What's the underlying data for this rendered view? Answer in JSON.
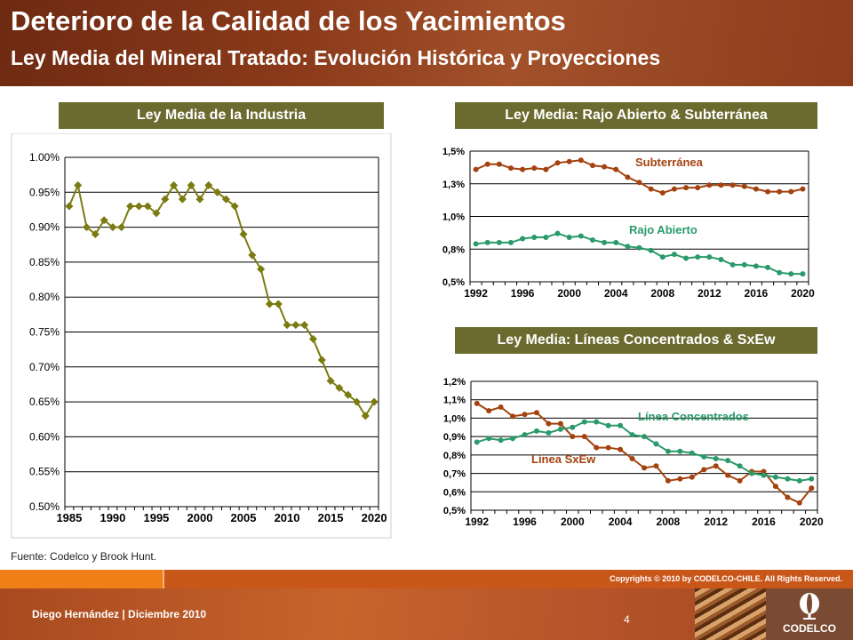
{
  "header": {
    "title": "Deterioro de la Calidad de los Yacimientos",
    "subtitle": "Ley Media del Mineral Tratado: Evolución Histórica y Proyecciones"
  },
  "footer": {
    "source": "Fuente: Codelco y Brook Hunt.",
    "copyright": "Copyrights © 2010 by CODELCO-CHILE.  All Rights Reserved.",
    "presenter": "Diego Hernández | Diciembre 2010",
    "page": "4",
    "logo": "CODELCO"
  },
  "colors": {
    "olive": "#7b7b12",
    "brown": "#a3420f",
    "green": "#2a9a6a",
    "box": "#6b6b30"
  },
  "chart_data": [
    {
      "type": "line",
      "title": "Ley Media de la Industria",
      "x": [
        1985,
        1986,
        1987,
        1988,
        1989,
        1990,
        1991,
        1992,
        1993,
        1994,
        1995,
        1996,
        1997,
        1998,
        1999,
        2000,
        2001,
        2002,
        2003,
        2004,
        2005,
        2006,
        2007,
        2008,
        2009,
        2010,
        2011,
        2012,
        2013,
        2014,
        2015,
        2016,
        2017,
        2018,
        2019,
        2020
      ],
      "series": [
        {
          "name": "Industria",
          "color": "#7b7b12",
          "values": [
            0.93,
            0.96,
            0.9,
            0.89,
            0.91,
            0.9,
            0.9,
            0.93,
            0.93,
            0.93,
            0.92,
            0.94,
            0.96,
            0.94,
            0.96,
            0.94,
            0.96,
            0.95,
            0.94,
            0.93,
            0.89,
            0.86,
            0.84,
            0.79,
            0.79,
            0.76,
            0.76,
            0.76,
            0.74,
            0.71,
            0.68,
            0.67,
            0.66,
            0.65,
            0.63,
            0.65
          ]
        }
      ],
      "ylim": [
        0.5,
        1.0
      ],
      "yticks": [
        0.5,
        0.55,
        0.6,
        0.65,
        0.7,
        0.75,
        0.8,
        0.85,
        0.9,
        0.95,
        1.0
      ],
      "ytick_labels": [
        "0.50%",
        "0.55%",
        "0.60%",
        "0.65%",
        "0.70%",
        "0.75%",
        "0.80%",
        "0.85%",
        "0.90%",
        "0.95%",
        "1.00%"
      ],
      "xtick_labels": [
        "1985",
        "1990",
        "1995",
        "2000",
        "2005",
        "2010",
        "2015",
        "2020"
      ],
      "grid": true
    },
    {
      "type": "line",
      "title": "Ley Media: Rajo Abierto & Subterránea",
      "x": [
        1992,
        1993,
        1994,
        1995,
        1996,
        1997,
        1998,
        1999,
        2000,
        2001,
        2002,
        2003,
        2004,
        2005,
        2006,
        2007,
        2008,
        2009,
        2010,
        2011,
        2012,
        2013,
        2014,
        2015,
        2016,
        2017,
        2018,
        2019,
        2020
      ],
      "series": [
        {
          "name": "Subterránea",
          "color": "#a3420f",
          "values": [
            1.36,
            1.4,
            1.4,
            1.37,
            1.36,
            1.37,
            1.36,
            1.41,
            1.42,
            1.43,
            1.39,
            1.38,
            1.36,
            1.3,
            1.26,
            1.21,
            1.18,
            1.21,
            1.22,
            1.22,
            1.24,
            1.24,
            1.24,
            1.23,
            1.21,
            1.19,
            1.19,
            1.19,
            1.21
          ]
        },
        {
          "name": "Rajo Abierto",
          "color": "#2a9a6a",
          "values": [
            0.79,
            0.8,
            0.8,
            0.8,
            0.83,
            0.84,
            0.84,
            0.87,
            0.84,
            0.85,
            0.82,
            0.8,
            0.8,
            0.77,
            0.76,
            0.74,
            0.69,
            0.71,
            0.68,
            0.69,
            0.69,
            0.67,
            0.63,
            0.63,
            0.62,
            0.61,
            0.57,
            0.56,
            0.56
          ]
        }
      ],
      "ylim": [
        0.5,
        1.5
      ],
      "yticks": [
        0.5,
        0.75,
        1.0,
        1.25,
        1.5
      ],
      "ytick_labels": [
        "0,5%",
        "0,8%",
        "1,0%",
        "1,3%",
        "1,5%"
      ],
      "xtick_labels": [
        "1992",
        "1996",
        "2000",
        "2004",
        "2008",
        "2012",
        "2016",
        "2020"
      ],
      "grid": true
    },
    {
      "type": "line",
      "title": "Ley Media: Líneas Concentrados & SxEw",
      "x": [
        1992,
        1993,
        1994,
        1995,
        1996,
        1997,
        1998,
        1999,
        2000,
        2001,
        2002,
        2003,
        2004,
        2005,
        2006,
        2007,
        2008,
        2009,
        2010,
        2011,
        2012,
        2013,
        2014,
        2015,
        2016,
        2017,
        2018,
        2019,
        2020
      ],
      "series": [
        {
          "name": "Línea SxEw",
          "color": "#a3420f",
          "values": [
            1.08,
            1.04,
            1.06,
            1.01,
            1.02,
            1.03,
            0.97,
            0.97,
            0.9,
            0.9,
            0.84,
            0.84,
            0.83,
            0.78,
            0.73,
            0.74,
            0.66,
            0.67,
            0.68,
            0.72,
            0.74,
            0.69,
            0.66,
            0.71,
            0.71,
            0.63,
            0.57,
            0.54,
            0.62
          ]
        },
        {
          "name": "Línea Concentrados",
          "color": "#2a9a6a",
          "values": [
            0.87,
            0.89,
            0.88,
            0.89,
            0.91,
            0.93,
            0.92,
            0.94,
            0.95,
            0.98,
            0.98,
            0.96,
            0.96,
            0.91,
            0.9,
            0.86,
            0.82,
            0.82,
            0.81,
            0.79,
            0.78,
            0.77,
            0.74,
            0.7,
            0.69,
            0.68,
            0.67,
            0.66,
            0.67
          ]
        }
      ],
      "ylim": [
        0.5,
        1.2
      ],
      "yticks": [
        0.5,
        0.6,
        0.7,
        0.8,
        0.9,
        1.0,
        1.1,
        1.2
      ],
      "ytick_labels": [
        "0,5%",
        "0,6%",
        "0,7%",
        "0,8%",
        "0,9%",
        "1,0%",
        "1,1%",
        "1,2%"
      ],
      "xtick_labels": [
        "1992",
        "1996",
        "2000",
        "2004",
        "2008",
        "2012",
        "2016",
        "2020"
      ],
      "grid": true
    }
  ]
}
